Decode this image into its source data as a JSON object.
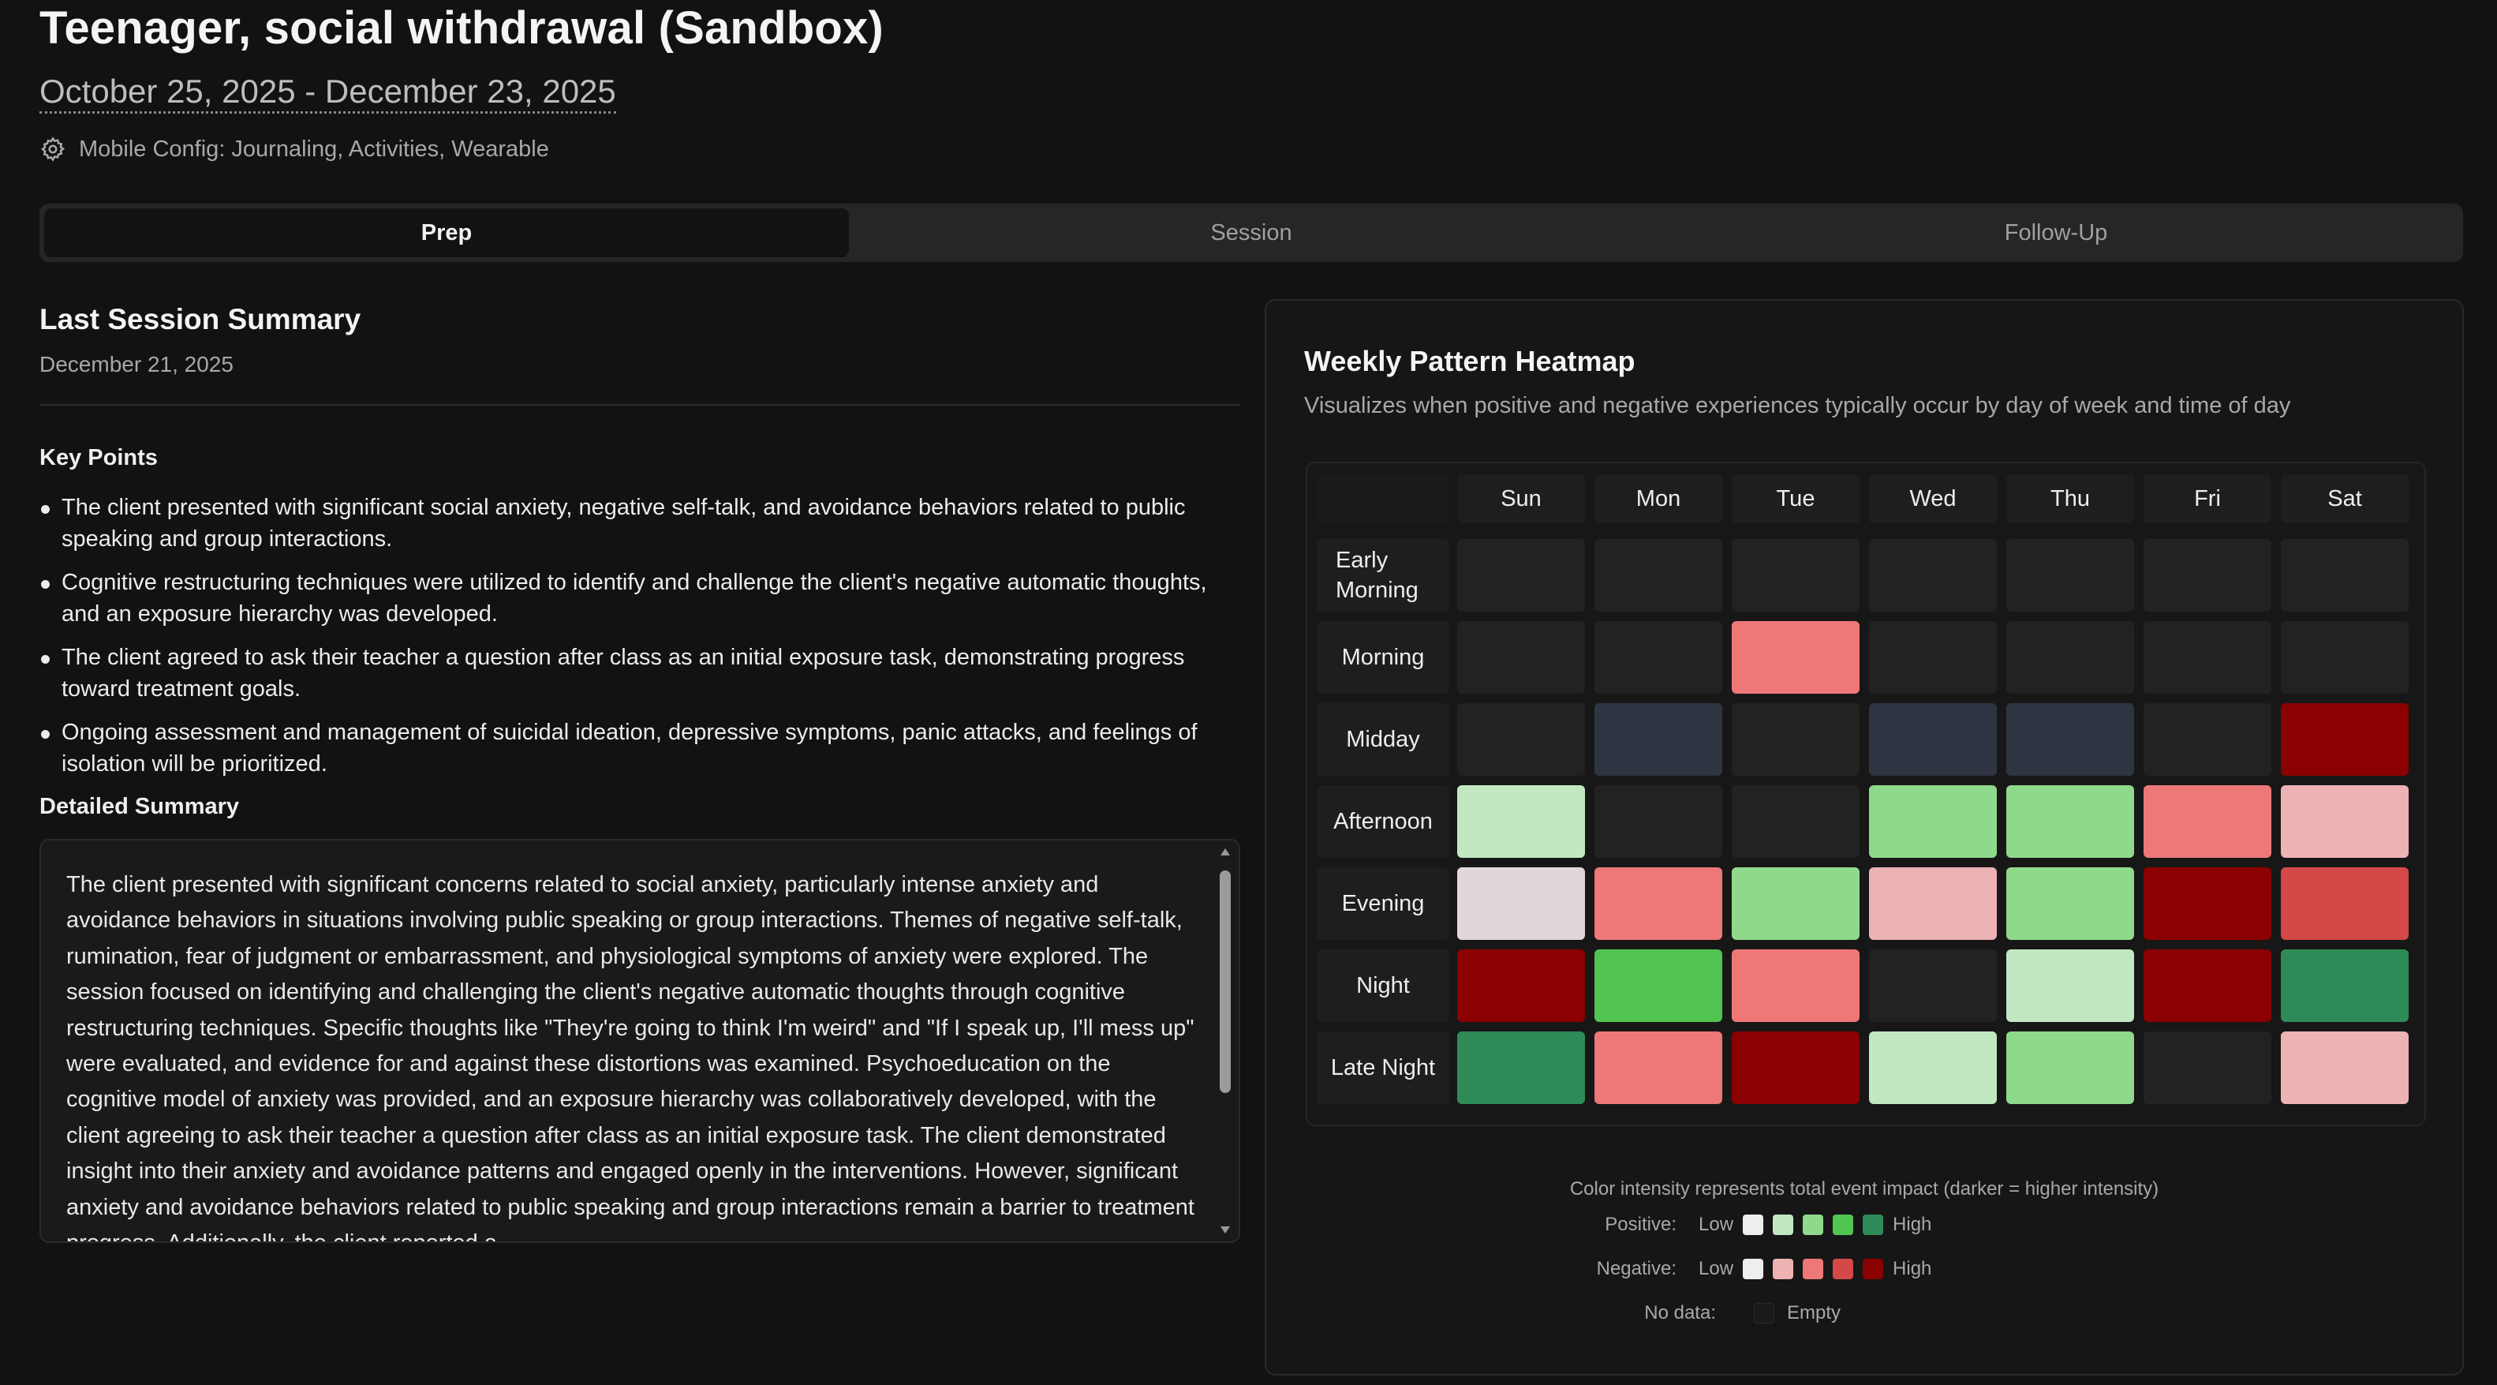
{
  "header": {
    "title": "Teenager, social withdrawal (Sandbox)",
    "date_range": "October 25, 2025 - December 23, 2025",
    "config_icon": "gear-icon",
    "config_text": "Mobile Config: Journaling, Activities, Wearable"
  },
  "tabs": [
    {
      "label": "Prep",
      "active": true
    },
    {
      "label": "Session",
      "active": false
    },
    {
      "label": "Follow-Up",
      "active": false
    }
  ],
  "summary": {
    "title": "Last Session Summary",
    "date": "December 21, 2025",
    "key_points_heading": "Key Points",
    "key_points": [
      "The client presented with significant social anxiety, negative self-talk, and avoidance behaviors related to public speaking and group interactions.",
      "Cognitive restructuring techniques were utilized to identify and challenge the client's negative automatic thoughts, and an exposure hierarchy was developed.",
      "The client agreed to ask their teacher a question after class as an initial exposure task, demonstrating progress toward treatment goals.",
      "Ongoing assessment and management of suicidal ideation, depressive symptoms, panic attacks, and feelings of isolation will be prioritized."
    ],
    "detailed_heading": "Detailed Summary",
    "detailed_text": "The client presented with significant concerns related to social anxiety, particularly intense anxiety and avoidance behaviors in situations involving public speaking or group interactions. Themes of negative self-talk, rumination, fear of judgment or embarrassment, and physiological symptoms of anxiety were explored. The session focused on identifying and challenging the client's negative automatic thoughts through cognitive restructuring techniques. Specific thoughts like \"They're going to think I'm weird\" and \"If I speak up, I'll mess up\" were evaluated, and evidence for and against these distortions was examined. Psychoeducation on the cognitive model of anxiety was provided, and an exposure hierarchy was collaboratively developed, with the client agreeing to ask their teacher a question after class as an initial exposure task. The client demonstrated insight into their anxiety and avoidance patterns and engaged openly in the interventions. However, significant anxiety and avoidance behaviors related to public speaking and group interactions remain a barrier to treatment progress. Additionally, the client reported a"
  },
  "heatmap": {
    "title": "Weekly Pattern Heatmap",
    "subtitle": "Visualizes when positive and negative experiences typically occur by day of week and time of day",
    "days": [
      "Sun",
      "Mon",
      "Tue",
      "Wed",
      "Thu",
      "Fri",
      "Sat"
    ],
    "times": [
      "Early Morning",
      "Morning",
      "Midday",
      "Afternoon",
      "Evening",
      "Night",
      "Late Night"
    ],
    "palette": {
      "empty": "#222222",
      "neutral": "#2e3442",
      "pos1": "#e0d8d8",
      "pos2": "#c2e8c2",
      "pos3": "#8fd98c",
      "pos4": "#52c452",
      "pos5": "#2e8b57",
      "neg1": "#ecb2b4",
      "neg2": "#ee7878",
      "neg3": "#d44848",
      "neg4": "#8b0000"
    },
    "cells": [
      [
        "empty",
        "empty",
        "empty",
        "empty",
        "empty",
        "empty",
        "empty"
      ],
      [
        "empty",
        "empty",
        "neg2",
        "empty",
        "empty",
        "empty",
        "empty"
      ],
      [
        "empty",
        "neutral",
        "empty",
        "neutral",
        "neutral",
        "empty",
        "neg4"
      ],
      [
        "pos2",
        "empty",
        "empty",
        "pos3",
        "pos3",
        "neg2",
        "neg1"
      ],
      [
        "pos1",
        "neg2",
        "pos3",
        "neg1",
        "pos3",
        "neg4",
        "neg3"
      ],
      [
        "neg4",
        "pos4",
        "neg2",
        "empty",
        "pos2",
        "neg4",
        "pos5"
      ],
      [
        "pos5",
        "neg2",
        "neg4",
        "pos2",
        "pos3",
        "empty",
        "neg1"
      ]
    ],
    "legend": {
      "note": "Color intensity represents total event impact (darker = higher intensity)",
      "positive_label": "Positive:",
      "negative_label": "Negative:",
      "nodata_label": "No data:",
      "low": "Low",
      "high": "High",
      "empty": "Empty",
      "positive_swatches": [
        "#eeeeee",
        "#c2e8c2",
        "#8fd98c",
        "#52c452",
        "#2e8b57"
      ],
      "negative_swatches": [
        "#eeeeee",
        "#ecb2b4",
        "#ee7878",
        "#d44848",
        "#8b0000"
      ],
      "nodata_swatch": "#1a1a1a"
    }
  }
}
